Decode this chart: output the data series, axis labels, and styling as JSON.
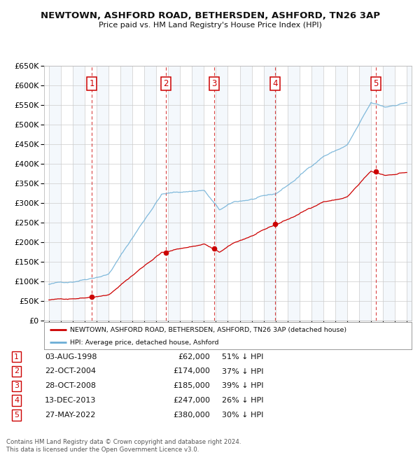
{
  "title": "NEWTOWN, ASHFORD ROAD, BETHERSDEN, ASHFORD, TN26 3AP",
  "subtitle": "Price paid vs. HM Land Registry's House Price Index (HPI)",
  "legend_red": "NEWTOWN, ASHFORD ROAD, BETHERSDEN, ASHFORD, TN26 3AP (detached house)",
  "legend_blue": "HPI: Average price, detached house, Ashford",
  "footer1": "Contains HM Land Registry data © Crown copyright and database right 2024.",
  "footer2": "This data is licensed under the Open Government Licence v3.0.",
  "sales": [
    {
      "num": 1,
      "date": "03-AUG-1998",
      "date_x": 1998.59,
      "price": 62000,
      "label": "£62,000",
      "pct": "51% ↓ HPI"
    },
    {
      "num": 2,
      "date": "22-OCT-2004",
      "date_x": 2004.81,
      "price": 174000,
      "label": "£174,000",
      "pct": "37% ↓ HPI"
    },
    {
      "num": 3,
      "date": "28-OCT-2008",
      "date_x": 2008.83,
      "price": 185000,
      "label": "£185,000",
      "pct": "39% ↓ HPI"
    },
    {
      "num": 4,
      "date": "13-DEC-2013",
      "date_x": 2013.95,
      "price": 247000,
      "label": "£247,000",
      "pct": "26% ↓ HPI"
    },
    {
      "num": 5,
      "date": "27-MAY-2022",
      "date_x": 2022.41,
      "price": 380000,
      "label": "£380,000",
      "pct": "30% ↓ HPI"
    }
  ],
  "ylim": [
    0,
    650000
  ],
  "xlim_start": 1994.6,
  "xlim_end": 2025.4,
  "background_color": "#ffffff",
  "grid_color": "#cccccc",
  "hpi_color": "#6baed6",
  "price_color": "#cc0000",
  "shade_color": "#ddeeff"
}
